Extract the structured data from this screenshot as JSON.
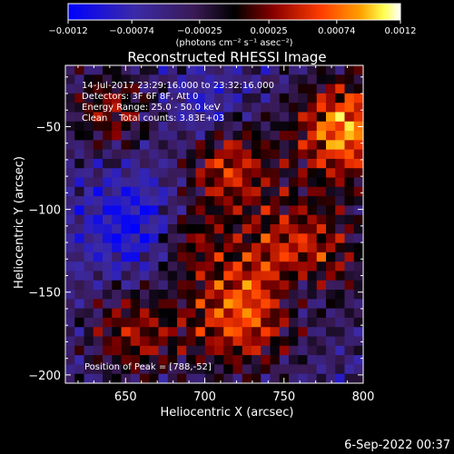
{
  "chart_data": {
    "type": "heatmap",
    "title": "Reconstructed RHESSI Image",
    "xlabel": "Heliocentric X (arcsec)",
    "ylabel": "Heliocentric Y (arcsec)",
    "xlim": [
      612,
      800
    ],
    "ylim": [
      -205,
      -13
    ],
    "x_ticks": [
      650,
      700,
      750,
      800
    ],
    "y_ticks": [
      -50,
      -100,
      -150,
      -200
    ],
    "x_tick_labels": [
      "650",
      "700",
      "750",
      "800"
    ],
    "y_tick_labels": [
      "−50",
      "−100",
      "−150",
      "−200"
    ],
    "colorbar": {
      "range": [
        -0.0012,
        0.0012
      ],
      "ticks": [
        -0.0012,
        -0.00074,
        -0.00025,
        0.00025,
        0.00074,
        0.0012
      ],
      "tick_labels": [
        "−0.0012",
        "−0.00074",
        "−0.00025",
        "0.00025",
        "0.00074",
        "0.0012"
      ],
      "units_label": "(photons cm⁻² s⁻¹ asec⁻²)"
    },
    "annotations": [
      "14-Jul-2017 23:29:16.000 to 23:32:16.000",
      "Detectors: 3F 6F 8F, Att 0",
      "Energy Range: 25.0 - 50.0 keV",
      "Clean    Total counts: 3.83E+03"
    ],
    "peak_label": "Position of Peak = [788,-52]",
    "peak_position": [
      788,
      -52
    ],
    "grid_resolution": [
      32,
      34
    ],
    "colormap": [
      "#0000ff",
      "#5a2aa0",
      "#000000",
      "#a00000",
      "#ff6a00",
      "#ffff80",
      "#ffffff"
    ]
  },
  "footer": {
    "date": "6-Sep-2022 00:37"
  }
}
